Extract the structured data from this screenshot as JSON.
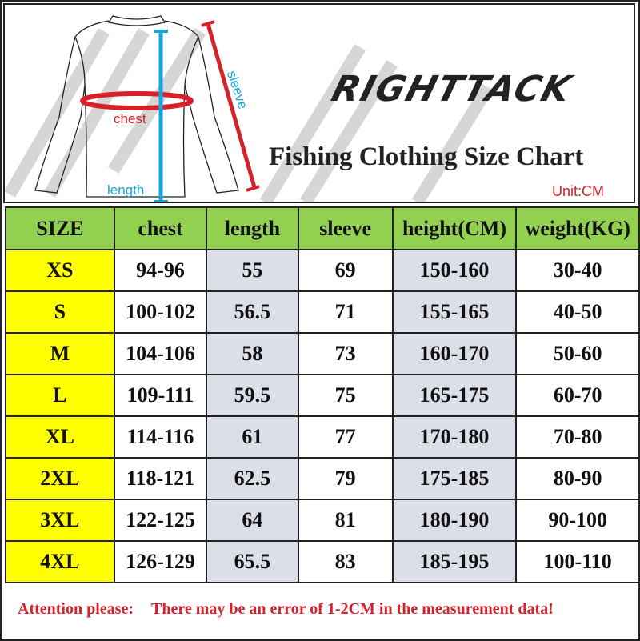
{
  "header": {
    "logo": "RIGHTTACK",
    "title": "Fishing Clothing Size Chart",
    "unit": "Unit:CM",
    "diagram_labels": {
      "chest": "chest",
      "length": "length",
      "sleeve": "sleeve"
    }
  },
  "table": {
    "columns": [
      "SIZE",
      "chest",
      "length",
      "sleeve",
      "height(CM)",
      "weight(KG)"
    ],
    "rows": [
      [
        "XS",
        "94-96",
        "55",
        "69",
        "150-160",
        "30-40"
      ],
      [
        "S",
        "100-102",
        "56.5",
        "71",
        "155-165",
        "40-50"
      ],
      [
        "M",
        "104-106",
        "58",
        "73",
        "160-170",
        "50-60"
      ],
      [
        "L",
        "109-111",
        "59.5",
        "75",
        "165-175",
        "60-70"
      ],
      [
        "XL",
        "114-116",
        "61",
        "77",
        "170-180",
        "70-80"
      ],
      [
        "2XL",
        "118-121",
        "62.5",
        "79",
        "175-185",
        "80-90"
      ],
      [
        "3XL",
        "122-125",
        "64",
        "81",
        "180-190",
        "90-100"
      ],
      [
        "4XL",
        "126-129",
        "65.5",
        "83",
        "185-195",
        "100-110"
      ]
    ]
  },
  "footer": {
    "attention": "Attention please:",
    "note": "There may be an error of 1-2CM in the measurement data!"
  },
  "colors": {
    "header_bg": "#92d050",
    "size_bg": "#ffff00",
    "shade_bg": "#dcdfe8",
    "accent_red": "#d6202a",
    "accent_blue": "#1aa3dc"
  }
}
